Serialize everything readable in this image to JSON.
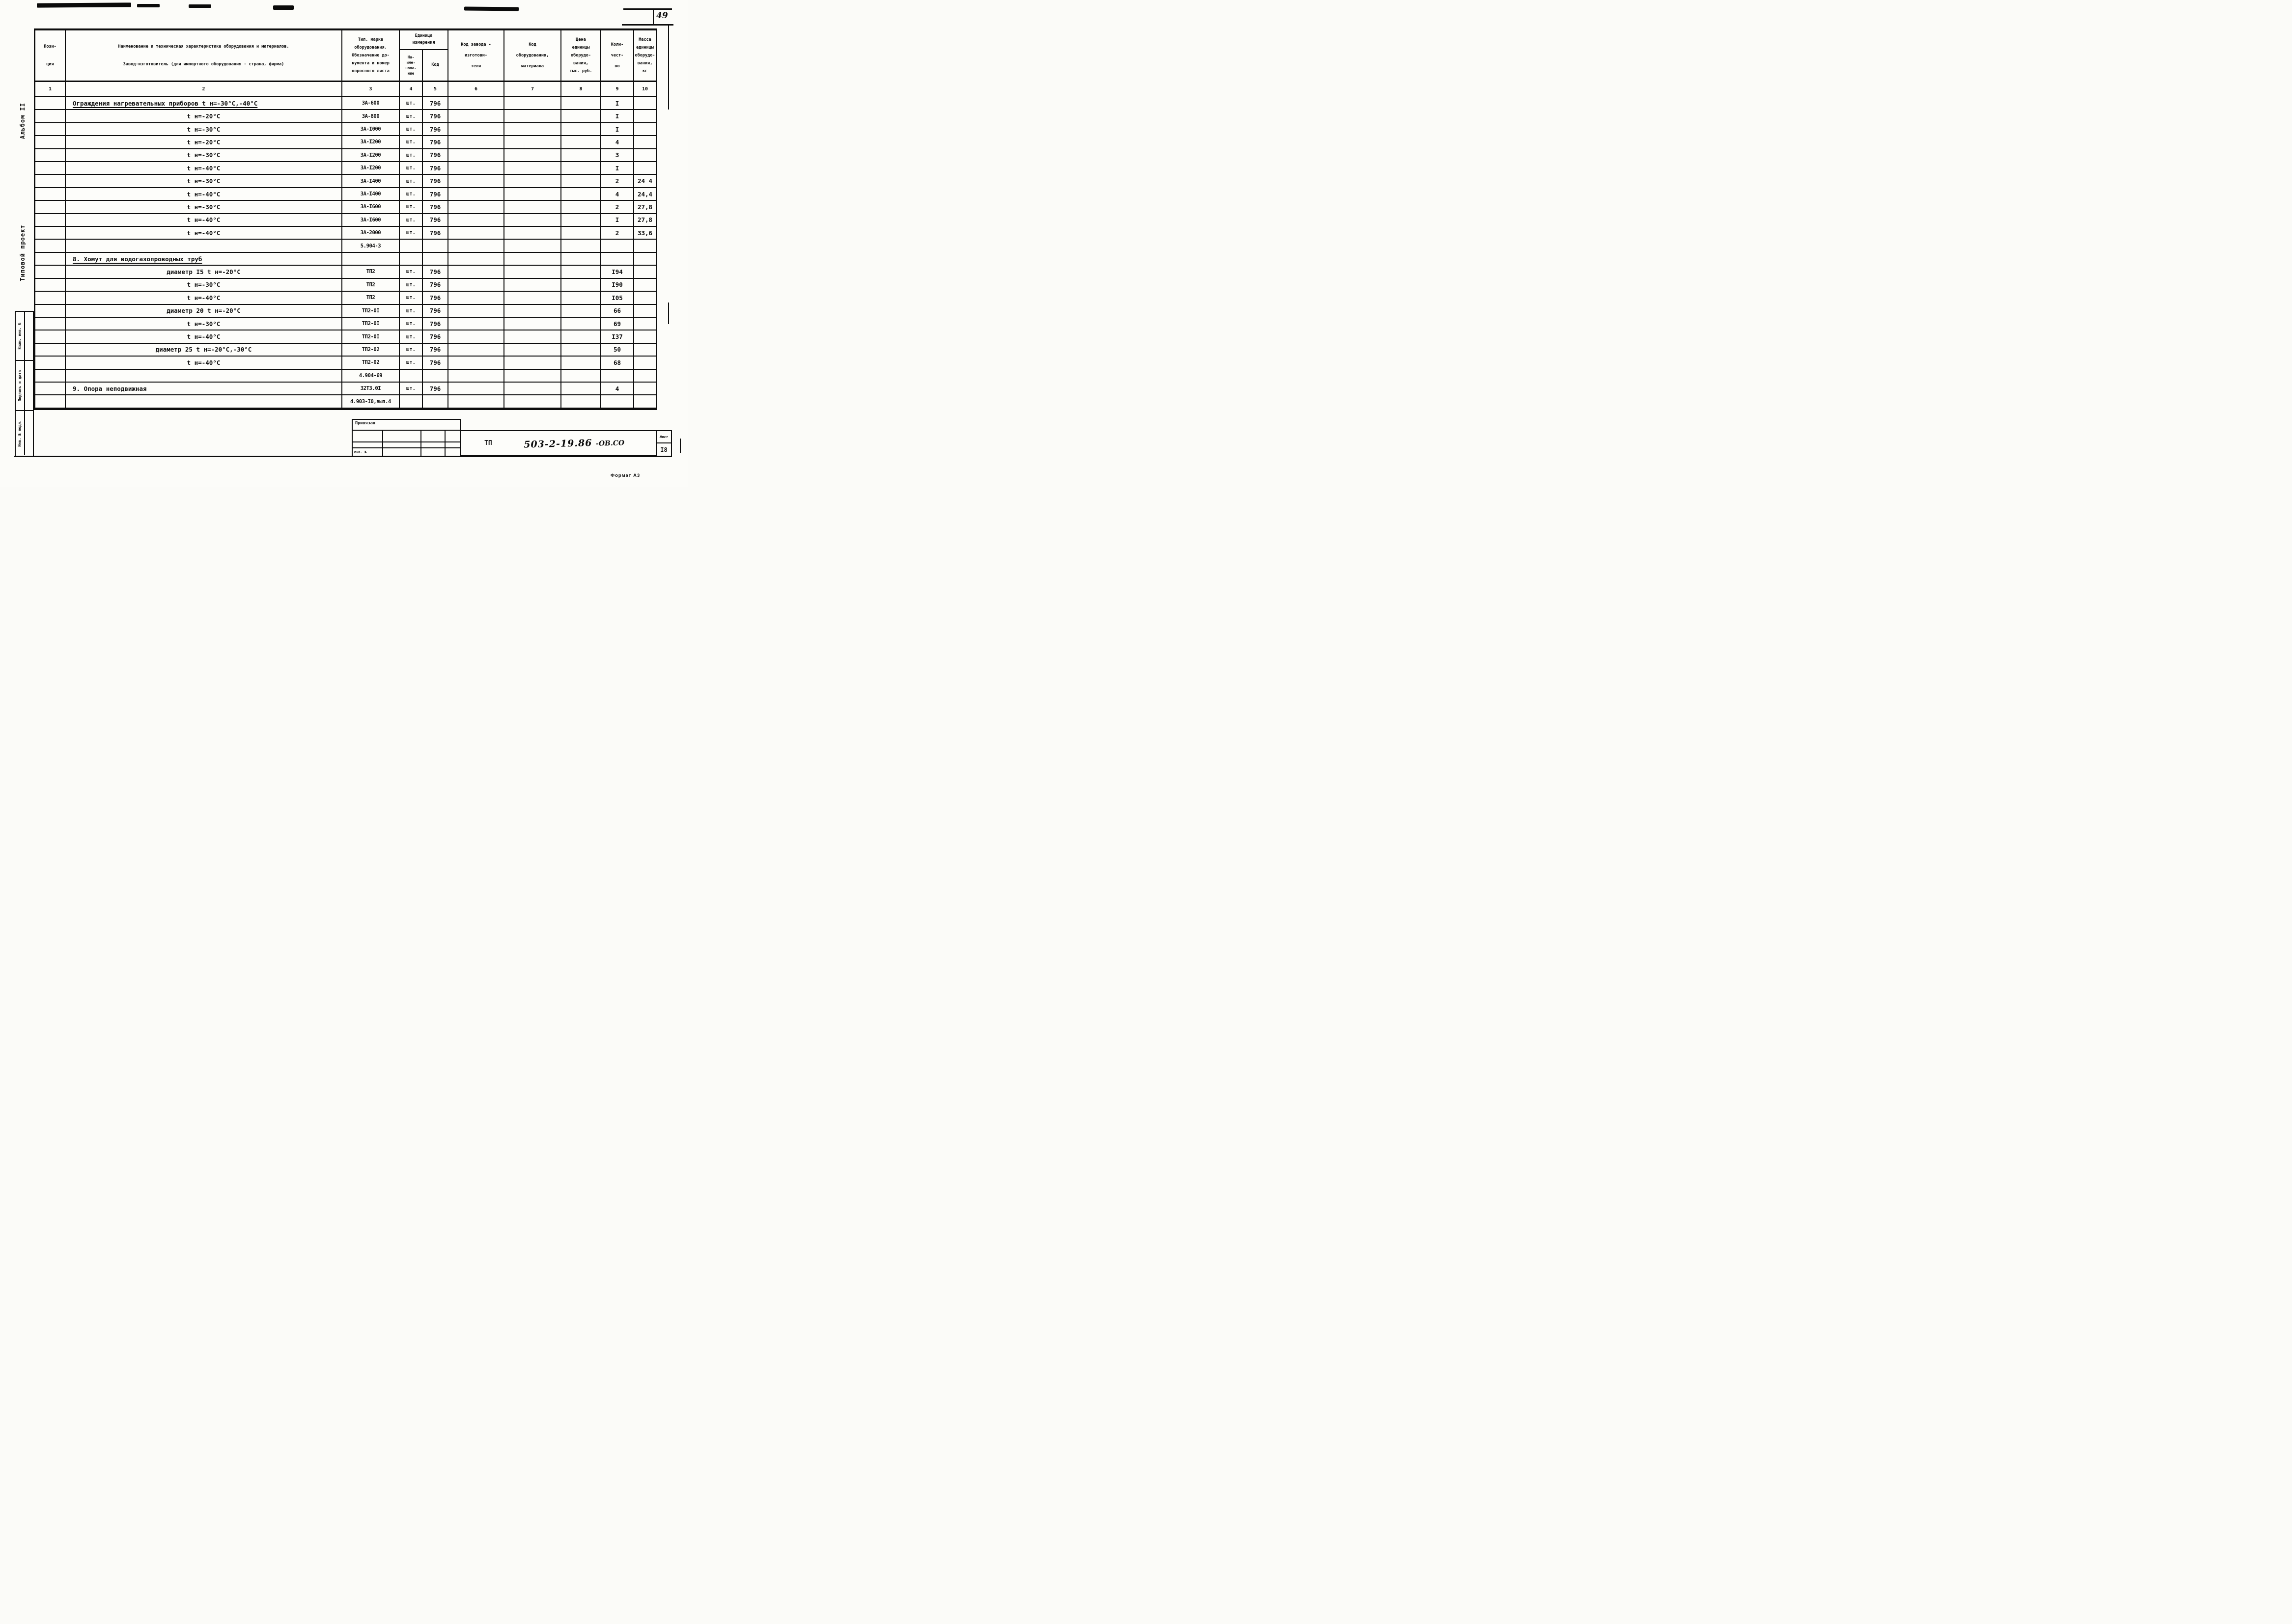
{
  "page": {
    "sheet_corner_number": "49",
    "format_note": "Формат А3"
  },
  "margins": {
    "album": "Альбом II",
    "project_type": "Типовой проект",
    "strip_labels": [
      "Взам. инв. №",
      "Подпись и дата",
      "Инв. № подл."
    ]
  },
  "table": {
    "header": {
      "c1": [
        "Пози-",
        "ция"
      ],
      "c2": [
        "Наименование и техническая характеристика  оборудования и материалов.",
        "Завод-изготовитель  (для импортного оборудования -  страна, фирма)"
      ],
      "c3": "Тип,    марка\nоборудования.\nОбозначение до-\nкумента и номер\nопросного листа",
      "unit_group": "Единица\nизмерения",
      "c4": "На-\nиме-\nнова-\nние",
      "c5": "Код",
      "c6": "Код  завода -\nизготови-\nтеля",
      "c7": "Код\nоборудования,\nматериала",
      "c8": "Цена\nединицы\nоборудо-\nвания,\nтыс. руб.",
      "c9": "Коли-\nчест-\nво",
      "c10": "Масса\nединицы\nоборудо-\nвания,\nкг",
      "numbers": [
        "1",
        "2",
        "3",
        "4",
        "5",
        "6",
        "7",
        "8",
        "9",
        "10"
      ]
    },
    "rows": [
      {
        "align": "left",
        "underline": true,
        "name": "Ограждения нагревательных приборов  t н=-30°С,-40°С",
        "type": "ЗА-600",
        "unit": "шт.",
        "code": "796",
        "qty": "I"
      },
      {
        "name": "t н=-20°С",
        "type": "ЗА-800",
        "unit": "шт.",
        "code": "796",
        "qty": "I"
      },
      {
        "name": "t н=-30°С",
        "type": "ЗА-I000",
        "unit": "шт.",
        "code": "796",
        "qty": "I"
      },
      {
        "name": "t н=-20°С",
        "type": "ЗА-I200",
        "unit": "шт.",
        "code": "796",
        "qty": "4"
      },
      {
        "name": "t н=-30°С",
        "type": "ЗА-I200",
        "unit": "шт.",
        "code": "796",
        "qty": "3"
      },
      {
        "name": "t н=-40°С",
        "type": "ЗА-I200",
        "unit": "шт.",
        "code": "796",
        "qty": "I"
      },
      {
        "name": "t н=-30°С",
        "type": "ЗА-I400",
        "unit": "шт.",
        "code": "796",
        "qty": "2",
        "mass": "24 4"
      },
      {
        "name": "t н=-40°С",
        "type": "ЗА-I400",
        "unit": "шт.",
        "code": "796",
        "qty": "4",
        "mass": "24,4"
      },
      {
        "name": "t н=-30°С",
        "type": "ЗА-I600",
        "unit": "шт.",
        "code": "796",
        "qty": "2",
        "mass": "27,8"
      },
      {
        "name": "t н=-40°С",
        "type": "ЗА-I600",
        "unit": "шт.",
        "code": "796",
        "qty": "I",
        "mass": "27,8"
      },
      {
        "name": "t н=-40°С",
        "type": "ЗА-2000",
        "unit": "шт.",
        "code": "796",
        "qty": "2",
        "mass": "33,6"
      },
      {
        "type": "5.904-3"
      },
      {
        "align": "left",
        "underline": true,
        "name": "8. Хомут для водогазопроводных труб"
      },
      {
        "name": "диаметр I5   t н=-20°С",
        "type": "ТП2",
        "unit": "шт.",
        "code": "796",
        "qty": "I94"
      },
      {
        "name": "t н=-30°С",
        "type": "ТП2",
        "unit": "шт.",
        "code": "796",
        "qty": "I90"
      },
      {
        "name": "t н=-40°С",
        "type": "ТП2",
        "unit": "шт.",
        "code": "796",
        "qty": "I05"
      },
      {
        "name": "диаметр 20   t н=-20°С",
        "type": "ТП2-0I",
        "unit": "шт.",
        "code": "796",
        "qty": "66"
      },
      {
        "name": "t н=-30°С",
        "type": "ТП2-0I",
        "unit": "шт.",
        "code": "796",
        "qty": "69"
      },
      {
        "name": "t н=-40°С",
        "type": "ТП2-0I",
        "unit": "шт.",
        "code": "796",
        "qty": "I37"
      },
      {
        "name": "диаметр 25   t н=-20°С,-30°С",
        "type": "ТП2-02",
        "unit": "шт.",
        "code": "796",
        "qty": "50"
      },
      {
        "name": "t н=-40°С",
        "type": "ТП2-02",
        "unit": "шт.",
        "code": "796",
        "qty": "68"
      },
      {
        "type": "4.904-69"
      },
      {
        "align": "left",
        "name": "9. Опора неподвижная",
        "type": "32Т3.0I",
        "unit": "шт.",
        "code": "796",
        "qty": "4"
      },
      {
        "type": "4.903-I0,вып.4"
      }
    ]
  },
  "footer": {
    "stamp_attached": "Привязан",
    "stamp_inv": "Инв. №",
    "doc_type": "ТП",
    "doc_number": "503-2-19.86",
    "doc_suffix": "-ОВ.СО",
    "sheet_label": "Лист",
    "sheet_number": "I8"
  }
}
